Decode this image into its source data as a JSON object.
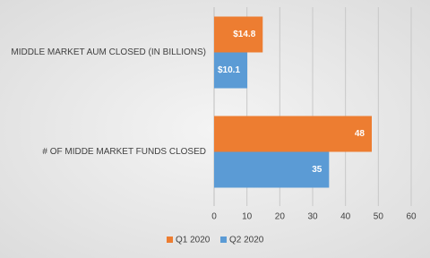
{
  "chart_data": {
    "type": "hbar",
    "categories": [
      "MIDDLE MARKET AUM CLOSED (IN BILLIONS)",
      "# OF MIDDE MARKET FUNDS CLOSED"
    ],
    "series": [
      {
        "name": "Q1 2020",
        "color": "#ed7d31",
        "values": [
          14.8,
          48
        ],
        "value_labels": [
          "$14.8",
          "48"
        ]
      },
      {
        "name": "Q2 2020",
        "color": "#5b9bd5",
        "values": [
          10.1,
          35
        ],
        "value_labels": [
          "$10.1",
          "35"
        ]
      }
    ],
    "xlim": [
      0,
      60
    ],
    "xticks": [
      0,
      10,
      20,
      30,
      40,
      50,
      60
    ],
    "grid": true,
    "legend": "bottom"
  }
}
